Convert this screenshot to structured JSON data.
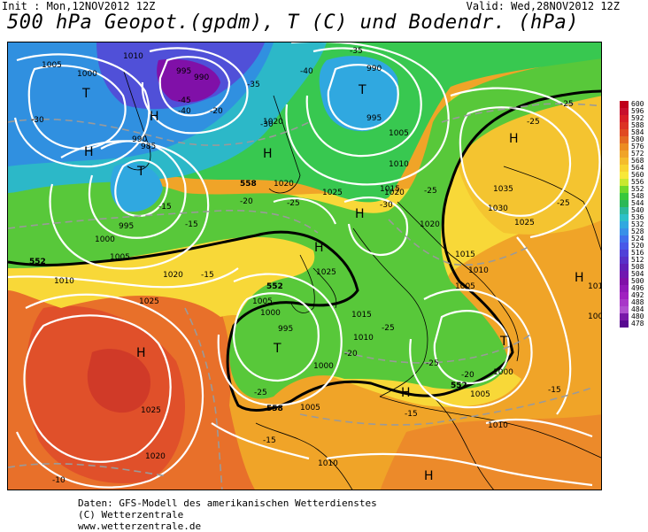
{
  "header": {
    "init": "Init : Mon,12NOV2012 12Z",
    "valid": "Valid: Wed,28NOV2012 12Z",
    "title": "500 hPa Geopot.(gpdm), T (C) und Bodendr. (hPa)"
  },
  "footer": {
    "line1": "Daten: GFS-Modell des amerikanischen Wetterdienstes",
    "line2": "(C) Wetterzentrale",
    "line3": "www.wetterzentrale.de"
  },
  "legend": {
    "labels": [
      "600",
      "596",
      "592",
      "588",
      "584",
      "580",
      "576",
      "572",
      "568",
      "564",
      "560",
      "556",
      "552",
      "548",
      "544",
      "540",
      "536",
      "532",
      "528",
      "524",
      "520",
      "516",
      "512",
      "508",
      "504",
      "500",
      "496",
      "492",
      "488",
      "484",
      "480",
      "478"
    ],
    "colors": [
      "#c0001a",
      "#c8102c",
      "#d81e26",
      "#dc3224",
      "#e04a22",
      "#e46a22",
      "#ec8c22",
      "#f0a428",
      "#f4bc2c",
      "#f8d430",
      "#f8e838",
      "#c8e830",
      "#70d82c",
      "#38c83c",
      "#2cb858",
      "#2cb89c",
      "#2cc0c8",
      "#30a8e0",
      "#3890e8",
      "#4070ec",
      "#4858e8",
      "#5040d8",
      "#5830c8",
      "#6020b8",
      "#7018b0",
      "#8010a8",
      "#9018b8",
      "#a020c0",
      "#a838c8",
      "#b050d0",
      "#7818a8",
      "#580890"
    ]
  },
  "map": {
    "pressure_labels": [
      "1005",
      "1000",
      "995",
      "990",
      "985",
      "1010",
      "1015",
      "1020",
      "1025",
      "1030",
      "1035"
    ],
    "temp_labels": [
      "-10",
      "-15",
      "-20",
      "-25",
      "-30",
      "-35",
      "-40",
      "-45"
    ],
    "centers": [
      "H",
      "T"
    ],
    "height_labels": [
      "558",
      "552",
      "546"
    ]
  }
}
